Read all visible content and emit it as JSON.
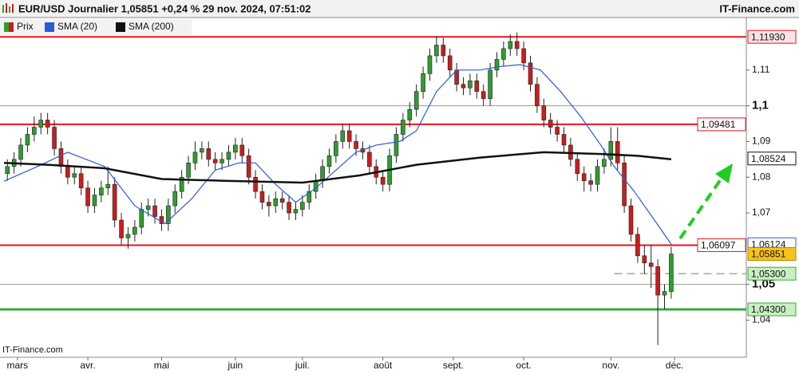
{
  "chart_data": {
    "type": "candlestick",
    "title": "EUR/USD Journalier 1,05851 +0,24 % 29 nov. 2024, 07:51:02",
    "source": "IT-Finance.com",
    "watermark": "IT-Finance.com",
    "name": "Prix",
    "up_color": "#2e9e2e",
    "down_color": "#c81e1e",
    "x": [
      1,
      3,
      5,
      7,
      9,
      11,
      13,
      15,
      17,
      19,
      21,
      23,
      25,
      27,
      29,
      31,
      33,
      35,
      37,
      39,
      41,
      43,
      45,
      47,
      49,
      51,
      53,
      55,
      57,
      59,
      61,
      63,
      65,
      67,
      69,
      71,
      73,
      75,
      77,
      79,
      81,
      83,
      85,
      87,
      89,
      91,
      93,
      95,
      97,
      99,
      101,
      103,
      105,
      107,
      109,
      111,
      113,
      115,
      117,
      119,
      121,
      123,
      125,
      127,
      129,
      131,
      133,
      135,
      137,
      139,
      141,
      143,
      145,
      147,
      149,
      151,
      153,
      155,
      157,
      159,
      161,
      163,
      165,
      167,
      169,
      171,
      173,
      175,
      177,
      179,
      181,
      183,
      185,
      187,
      189,
      191,
      193,
      195,
      197,
      199
    ],
    "open": [
      1.081,
      1.083,
      1.085,
      1.089,
      1.092,
      1.094,
      1.096,
      1.094,
      1.088,
      1.083,
      1.08,
      1.081,
      1.077,
      1.072,
      1.075,
      1.077,
      1.078,
      1.068,
      1.063,
      1.064,
      1.066,
      1.071,
      1.072,
      1.069,
      1.067,
      1.072,
      1.076,
      1.08,
      1.084,
      1.087,
      1.088,
      1.085,
      1.084,
      1.085,
      1.087,
      1.089,
      1.086,
      1.08,
      1.076,
      1.073,
      1.072,
      1.074,
      1.073,
      1.07,
      1.071,
      1.073,
      1.076,
      1.079,
      1.083,
      1.086,
      1.09,
      1.093,
      1.09,
      1.088,
      1.087,
      1.083,
      1.08,
      1.078,
      1.086,
      1.092,
      1.096,
      1.099,
      1.104,
      1.109,
      1.114,
      1.117,
      1.114,
      1.11,
      1.106,
      1.105,
      1.107,
      1.104,
      1.102,
      1.11,
      1.113,
      1.116,
      1.118,
      1.116,
      1.112,
      1.106,
      1.1,
      1.096,
      1.094,
      1.092,
      1.089,
      1.085,
      1.081,
      1.079,
      1.078,
      1.083,
      1.085,
      1.09,
      1.084,
      1.072,
      1.064,
      1.058,
      1.056,
      1.055,
      1.047,
      1.048
    ],
    "high": [
      1.085,
      1.087,
      1.091,
      1.094,
      1.097,
      1.098,
      1.098,
      1.096,
      1.09,
      1.085,
      1.083,
      1.083,
      1.079,
      1.077,
      1.079,
      1.083,
      1.08,
      1.07,
      1.066,
      1.068,
      1.073,
      1.074,
      1.074,
      1.071,
      1.074,
      1.078,
      1.082,
      1.086,
      1.09,
      1.09,
      1.09,
      1.087,
      1.087,
      1.089,
      1.091,
      1.091,
      1.088,
      1.082,
      1.078,
      1.075,
      1.076,
      1.076,
      1.075,
      1.073,
      1.075,
      1.078,
      1.081,
      1.085,
      1.088,
      1.092,
      1.095,
      1.095,
      1.092,
      1.09,
      1.089,
      1.085,
      1.082,
      1.088,
      1.094,
      1.098,
      1.101,
      1.106,
      1.111,
      1.116,
      1.1195,
      1.119,
      1.116,
      1.112,
      1.108,
      1.109,
      1.109,
      1.106,
      1.112,
      1.115,
      1.118,
      1.12,
      1.1205,
      1.118,
      1.114,
      1.108,
      1.102,
      1.098,
      1.096,
      1.094,
      1.091,
      1.087,
      1.083,
      1.081,
      1.085,
      1.088,
      1.094,
      1.094,
      1.086,
      1.074,
      1.066,
      1.061,
      1.061,
      1.057,
      1.05,
      1.0605
    ],
    "low": [
      1.079,
      1.081,
      1.083,
      1.087,
      1.09,
      1.092,
      1.092,
      1.086,
      1.081,
      1.078,
      1.078,
      1.075,
      1.07,
      1.07,
      1.073,
      1.075,
      1.066,
      1.061,
      1.06,
      1.062,
      1.064,
      1.069,
      1.067,
      1.065,
      1.065,
      1.07,
      1.074,
      1.078,
      1.082,
      1.085,
      1.083,
      1.082,
      1.082,
      1.083,
      1.085,
      1.084,
      1.078,
      1.074,
      1.071,
      1.069,
      1.07,
      1.071,
      1.068,
      1.068,
      1.069,
      1.071,
      1.074,
      1.077,
      1.081,
      1.084,
      1.088,
      1.088,
      1.086,
      1.085,
      1.081,
      1.078,
      1.076,
      1.076,
      1.084,
      1.09,
      1.094,
      1.097,
      1.102,
      1.107,
      1.112,
      1.112,
      1.108,
      1.104,
      1.103,
      1.103,
      1.102,
      1.1,
      1.1,
      1.108,
      1.111,
      1.114,
      1.114,
      1.11,
      1.104,
      1.098,
      1.094,
      1.092,
      1.09,
      1.087,
      1.083,
      1.079,
      1.076,
      1.076,
      1.076,
      1.081,
      1.083,
      1.082,
      1.07,
      1.062,
      1.056,
      1.053,
      1.049,
      1.033,
      1.043,
      1.046
    ],
    "close": [
      1.083,
      1.085,
      1.089,
      1.092,
      1.094,
      1.096,
      1.094,
      1.088,
      1.083,
      1.08,
      1.081,
      1.077,
      1.072,
      1.075,
      1.077,
      1.078,
      1.068,
      1.063,
      1.064,
      1.066,
      1.071,
      1.072,
      1.069,
      1.067,
      1.072,
      1.076,
      1.08,
      1.084,
      1.087,
      1.088,
      1.085,
      1.084,
      1.085,
      1.087,
      1.089,
      1.086,
      1.08,
      1.076,
      1.073,
      1.072,
      1.074,
      1.073,
      1.07,
      1.071,
      1.073,
      1.076,
      1.079,
      1.083,
      1.086,
      1.09,
      1.093,
      1.09,
      1.088,
      1.087,
      1.083,
      1.08,
      1.078,
      1.086,
      1.092,
      1.096,
      1.099,
      1.104,
      1.109,
      1.114,
      1.117,
      1.114,
      1.11,
      1.106,
      1.105,
      1.107,
      1.104,
      1.102,
      1.11,
      1.113,
      1.116,
      1.118,
      1.116,
      1.112,
      1.106,
      1.1,
      1.096,
      1.094,
      1.092,
      1.089,
      1.085,
      1.081,
      1.079,
      1.078,
      1.083,
      1.085,
      1.09,
      1.084,
      1.072,
      1.064,
      1.058,
      1.056,
      1.055,
      1.047,
      1.048,
      1.0585
    ],
    "lines": [
      {
        "name": "SMA (20)",
        "color": "#2a5bd7",
        "x": [
          0,
          10,
          19,
          30,
          39,
          48,
          56,
          63,
          70,
          75,
          81,
          87,
          93,
          99,
          105,
          111,
          118,
          123,
          129,
          135,
          142,
          148,
          154,
          160,
          166,
          172,
          178,
          182,
          188,
          194,
          199
        ],
        "values": [
          1.0789,
          1.083,
          1.087,
          1.083,
          1.072,
          1.067,
          1.074,
          1.082,
          1.084,
          1.084,
          1.078,
          1.073,
          1.077,
          1.082,
          1.087,
          1.089,
          1.09,
          1.093,
          1.104,
          1.11,
          1.11,
          1.111,
          1.1115,
          1.11,
          1.104,
          1.097,
          1.089,
          1.083,
          1.076,
          1.068,
          1.0612
        ],
        "last": {
          "value": 1.06124,
          "label": "1,06124"
        }
      },
      {
        "name": "SMA (200)",
        "color": "#111111",
        "x": [
          0,
          13,
          30,
          47,
          66,
          89,
          106,
          123,
          142,
          161,
          178,
          189,
          199
        ],
        "values": [
          1.084,
          1.0835,
          1.0825,
          1.0795,
          1.079,
          1.0785,
          1.0805,
          1.0835,
          1.0855,
          1.087,
          1.0865,
          1.086,
          1.085
        ],
        "last": {
          "value": 1.08524,
          "label": "1,08524"
        }
      }
    ],
    "levels": [
      {
        "value": 1.1193,
        "label": "1,11930",
        "color": "#e8141b",
        "tag_fill": "#fde3e3"
      },
      {
        "value": 1.09481,
        "label": "1,09481",
        "color": "#e8141b",
        "tag_fill": "#ffffff",
        "tag_inside": true
      },
      {
        "value": 1.06097,
        "label": "1,06097",
        "color": "#e8141b",
        "tag_fill": "#ffffff",
        "tag_inside": true
      },
      {
        "value": 1.053,
        "label": "1,05300",
        "color": "#3aa83a",
        "tag_fill": "#c9efc2",
        "dashed": true,
        "x_start": 182
      },
      {
        "value": 1.043,
        "label": "1,04300",
        "color": "#3aa83a",
        "tag_fill": "#c9efc2",
        "thick": true
      }
    ],
    "price_tag": {
      "value": 1.05851,
      "label": "1,05851",
      "fill": "#f6c21c"
    },
    "xlim": [
      -1.2,
      221.4
    ],
    "xticks": [
      {
        "value": 4,
        "label": "mars"
      },
      {
        "value": 25,
        "label": "avr."
      },
      {
        "value": 47,
        "label": "mai"
      },
      {
        "value": 69,
        "label": "juin"
      },
      {
        "value": 89,
        "label": "juil."
      },
      {
        "value": 113,
        "label": "août"
      },
      {
        "value": 134,
        "label": "sept."
      },
      {
        "value": 155,
        "label": "oct."
      },
      {
        "value": 181,
        "label": "nov."
      },
      {
        "value": 200,
        "label": "déc."
      }
    ],
    "ylim": [
      1.0296,
      1.1247
    ],
    "yticks": [
      {
        "value": 1.11,
        "label": "1,11"
      },
      {
        "value": 1.1,
        "label": "1,1",
        "major": true
      },
      {
        "value": 1.09,
        "label": "1,09"
      },
      {
        "value": 1.08,
        "label": "1,08"
      },
      {
        "value": 1.07,
        "label": "1,07"
      },
      {
        "value": 1.05,
        "label": "1,05",
        "major": true
      },
      {
        "value": 1.04,
        "label": "1,04"
      }
    ]
  }
}
